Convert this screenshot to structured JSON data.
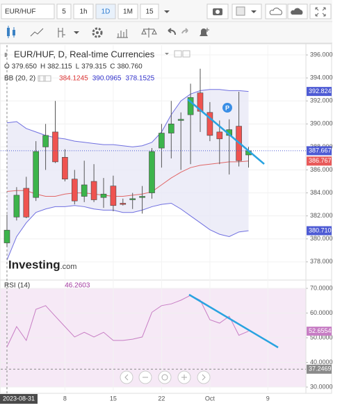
{
  "toolbar": {
    "symbol": "EUR/HUF",
    "intervals": [
      "5",
      "1h",
      "1D",
      "1M",
      "15"
    ],
    "active_interval": "1D"
  },
  "chart_data": [
    {
      "type": "candlestick",
      "title": "EUR/HUF, D, Real-time Currencies",
      "brand": {
        "name": "Investing",
        "suffix": ".com"
      },
      "categories": [
        "2023-08-31",
        null,
        null,
        null,
        null,
        null,
        "8",
        null,
        null,
        null,
        null,
        "15",
        null,
        null,
        null,
        null,
        "22",
        null,
        null,
        null,
        null,
        "Oct",
        null,
        null,
        null,
        null,
        null,
        "9"
      ],
      "open": [
        379.65,
        381.9,
        384.4,
        383.6,
        388.0,
        389.3,
        387.1,
        385.2,
        383.7,
        385.0,
        383.6,
        384.6,
        383.1,
        383.4,
        383.6,
        384.0,
        387.9,
        389.2,
        390.3,
        390.8,
        392.7,
        391.0,
        389.3,
        389.0,
        389.8,
        387.3,
        null,
        null
      ],
      "high": [
        382.115,
        384.5,
        385.4,
        388.5,
        390.0,
        392.0,
        387.8,
        386.0,
        386.8,
        386.5,
        385.3,
        385.5,
        383.5,
        384.0,
        384.6,
        387.9,
        390.0,
        392.0,
        391.0,
        393.5,
        394.8,
        391.9,
        390.3,
        390.4,
        392.8,
        388.0,
        null,
        null
      ],
      "low": [
        379.315,
        381.6,
        381.8,
        383.3,
        386.0,
        386.6,
        385.0,
        383.0,
        383.2,
        383.2,
        382.7,
        382.4,
        382.9,
        382.6,
        382.2,
        383.5,
        386.2,
        387.0,
        386.0,
        386.5,
        389.3,
        388.5,
        386.5,
        385.6,
        386.3,
        386.2,
        null,
        null
      ],
      "close": [
        380.76,
        383.8,
        381.9,
        387.6,
        389.0,
        386.7,
        385.2,
        383.3,
        384.7,
        383.4,
        383.9,
        382.9,
        383.0,
        383.5,
        383.7,
        387.6,
        389.2,
        390.0,
        390.4,
        392.3,
        391.1,
        389.0,
        388.7,
        389.5,
        386.8,
        387.667,
        null,
        null
      ],
      "up_color": "#3cb44b",
      "down_color": "#ef5350",
      "ohlc_legend": [
        {
          "key": "O",
          "value": 379.65,
          "label": "379.650"
        },
        {
          "key": "H",
          "value": 382.115,
          "label": "382.115"
        },
        {
          "key": "L",
          "value": 379.315,
          "label": "379.315"
        },
        {
          "key": "C",
          "value": 380.76,
          "label": "380.760"
        }
      ],
      "bands_label": "BB (20, 2)",
      "series": [
        {
          "color": "#e06666",
          "legend": {
            "value": 384.1245,
            "label": "384.1245"
          },
          "values": [
            384.1245,
            384.2,
            384.2,
            383.9,
            383.7,
            383.7,
            383.9,
            384.0,
            384.0,
            383.9,
            383.8,
            383.7,
            383.7,
            383.8,
            383.9,
            384.1,
            384.7,
            385.3,
            385.8,
            386.2,
            386.4,
            386.5,
            386.6,
            386.7,
            386.7,
            386.767,
            null,
            null
          ]
        },
        {
          "color": "#6f6fe0",
          "legend": {
            "value": 390.0965,
            "label": "390.0965"
          },
          "values": [
            390.0965,
            390.2,
            389.6,
            389.3,
            389.0,
            388.8,
            388.7,
            388.5,
            388.4,
            388.3,
            388.2,
            388.2,
            388.1,
            388.0,
            388.1,
            388.4,
            389.3,
            390.8,
            392.0,
            392.6,
            392.9,
            393.0,
            393.0,
            392.9,
            392.9,
            392.824,
            null,
            null
          ]
        },
        {
          "color": "#6f6fe0",
          "legend": {
            "value": 378.1525,
            "label": "378.1525"
          },
          "values": [
            378.1525,
            380.2,
            381.4,
            382.3,
            382.6,
            382.8,
            382.8,
            382.9,
            382.8,
            382.6,
            382.5,
            382.5,
            382.3,
            382.3,
            382.5,
            382.8,
            383.0,
            383.1,
            382.6,
            382.0,
            381.4,
            380.8,
            380.4,
            380.2,
            380.6,
            380.71,
            null,
            null
          ]
        }
      ],
      "axis_tags": [
        {
          "value": 392.824,
          "label": "392.824",
          "color": "#4e5bd4"
        },
        {
          "value": 387.667,
          "label": "387.667",
          "color": "#4e5bd4"
        },
        {
          "value": 386.767,
          "label": "386.767",
          "color": "#e85a5a"
        },
        {
          "value": 380.71,
          "label": "380.710",
          "color": "#4e5bd4"
        }
      ],
      "ylim": [
        376.6,
        396.85
      ],
      "yticks": [
        {
          "value": 396,
          "label": "396.000"
        },
        {
          "value": 394,
          "label": "394.000"
        },
        {
          "value": 392,
          "label": "392.000"
        },
        {
          "value": 390,
          "label": "390.000"
        },
        {
          "value": 388,
          "label": "388.000"
        },
        {
          "value": 386,
          "label": "386.000"
        },
        {
          "value": 384,
          "label": "384.000"
        },
        {
          "value": 382,
          "label": "382.000"
        },
        {
          "value": 380,
          "label": "380.000"
        },
        {
          "value": 378,
          "label": "378.000"
        }
      ],
      "grid": true
    },
    {
      "type": "line",
      "title": "RSI (14)",
      "legend": {
        "value": 46.2603,
        "label": "46.2603"
      },
      "color": "#c77dc4",
      "values": [
        46.2603,
        54.5,
        48.9,
        61.5,
        63.0,
        58.7,
        54.5,
        50.3,
        52.2,
        50.3,
        52.2,
        48.9,
        48.9,
        49.4,
        50.3,
        60.3,
        63.0,
        63.7,
        65.2,
        67.2,
        65.2,
        57.3,
        55.9,
        58.7,
        51.0,
        52.6554,
        null,
        null
      ],
      "levels": [
        70,
        30
      ],
      "axis_tags": [
        {
          "value": 52.6554,
          "label": "52.6554",
          "color": "#c77dc4"
        },
        {
          "value": 37.2469,
          "label": "37.2469",
          "color": "#8a8a8a"
        }
      ],
      "ylim": [
        28.6,
        72.8
      ],
      "yticks": [
        {
          "value": 70,
          "label": "70.0000"
        },
        {
          "value": 60,
          "label": "60.0000"
        },
        {
          "value": 50,
          "label": "50.0000"
        },
        {
          "value": 40,
          "label": "40.0000"
        },
        {
          "value": 30,
          "label": "30.0000"
        }
      ],
      "grid": true
    }
  ]
}
